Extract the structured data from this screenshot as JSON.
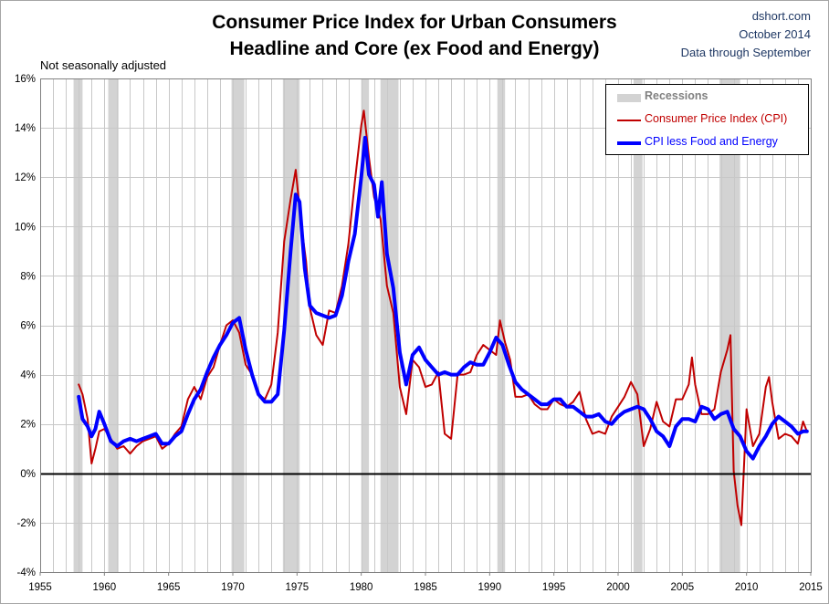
{
  "chart": {
    "title_line1": "Consumer Price Index for Urban Consumers",
    "title_line2": "Headline and Core (ex Food and Energy)",
    "credit_line1": "dshort.com",
    "credit_line2": "October 2014",
    "credit_line3": "Data through September",
    "note": "Not seasonally adjusted"
  },
  "legend": {
    "recessions": "Recessions",
    "cpi": "Consumer Price Index (CPI)",
    "core": "CPI less Food and Energy"
  },
  "colors": {
    "cpi": "#c00000",
    "core": "#0000ff",
    "recession": "#d3d3d3",
    "grid": "#c8c8c8",
    "credit": "#1f3864"
  },
  "chart_data": {
    "type": "line",
    "title": "Consumer Price Index for Urban Consumers Headline and Core (ex Food and Energy)",
    "xlim": [
      1955,
      2015
    ],
    "ylim": [
      -4,
      16
    ],
    "x_ticks": [
      "1955",
      "1960",
      "1965",
      "1970",
      "1975",
      "1980",
      "1985",
      "1990",
      "1995",
      "2000",
      "2005",
      "2010",
      "2015"
    ],
    "y_ticks": [
      "-4%",
      "-2%",
      "0%",
      "2%",
      "4%",
      "6%",
      "8%",
      "10%",
      "12%",
      "14%",
      "16%"
    ],
    "grid": true,
    "legend_position": "top-right",
    "recessions": [
      [
        1957.6,
        1958.3
      ],
      [
        1960.3,
        1961.1
      ],
      [
        1969.9,
        1970.9
      ],
      [
        1973.9,
        1975.2
      ],
      [
        1980.0,
        1980.6
      ],
      [
        1981.5,
        1982.9
      ],
      [
        1990.6,
        1991.2
      ],
      [
        2001.2,
        2001.9
      ],
      [
        2007.9,
        2009.5
      ]
    ],
    "series": [
      {
        "name": "Consumer Price Index (CPI)",
        "x": [
          1958.0,
          1958.3,
          1958.7,
          1959.0,
          1959.3,
          1959.6,
          1960.0,
          1960.5,
          1961.0,
          1961.5,
          1962.0,
          1962.5,
          1963.0,
          1963.5,
          1964.0,
          1964.5,
          1965.0,
          1965.5,
          1966.0,
          1966.5,
          1967.0,
          1967.5,
          1968.0,
          1968.5,
          1969.0,
          1969.5,
          1970.0,
          1970.5,
          1971.0,
          1971.5,
          1972.0,
          1972.5,
          1973.0,
          1973.5,
          1974.0,
          1974.5,
          1974.9,
          1975.3,
          1975.7,
          1976.0,
          1976.5,
          1977.0,
          1977.5,
          1978.0,
          1978.5,
          1979.0,
          1979.5,
          1980.0,
          1980.2,
          1980.6,
          1981.0,
          1981.5,
          1982.0,
          1982.5,
          1983.0,
          1983.5,
          1984.0,
          1984.5,
          1985.0,
          1985.5,
          1986.0,
          1986.5,
          1987.0,
          1987.5,
          1988.0,
          1988.5,
          1989.0,
          1989.5,
          1990.0,
          1990.5,
          1990.8,
          1991.2,
          1991.6,
          1992.0,
          1992.5,
          1993.0,
          1993.5,
          1994.0,
          1994.5,
          1995.0,
          1995.5,
          1996.0,
          1996.5,
          1997.0,
          1997.5,
          1998.0,
          1998.5,
          1999.0,
          1999.5,
          2000.0,
          2000.5,
          2001.0,
          2001.5,
          2002.0,
          2002.5,
          2003.0,
          2003.5,
          2004.0,
          2004.5,
          2005.0,
          2005.5,
          2005.75,
          2006.0,
          2006.5,
          2007.0,
          2007.5,
          2008.0,
          2008.5,
          2008.75,
          2009.0,
          2009.3,
          2009.6,
          2010.0,
          2010.5,
          2011.0,
          2011.5,
          2011.75,
          2012.0,
          2012.5,
          2013.0,
          2013.5,
          2014.0,
          2014.4,
          2014.7
        ],
        "values": [
          3.6,
          3.2,
          2.2,
          0.4,
          1.0,
          1.7,
          1.8,
          1.4,
          1.0,
          1.1,
          0.8,
          1.1,
          1.3,
          1.4,
          1.5,
          1.0,
          1.2,
          1.6,
          1.9,
          3.0,
          3.5,
          3.0,
          3.9,
          4.3,
          5.2,
          6.0,
          6.2,
          5.7,
          4.4,
          4.0,
          3.2,
          3.0,
          3.6,
          5.7,
          9.4,
          11.1,
          12.3,
          10.2,
          8.6,
          6.7,
          5.6,
          5.2,
          6.6,
          6.5,
          7.6,
          9.3,
          11.8,
          14.1,
          14.7,
          12.8,
          11.2,
          10.3,
          7.6,
          6.5,
          3.5,
          2.4,
          4.6,
          4.3,
          3.5,
          3.6,
          4.1,
          1.6,
          1.4,
          4.0,
          4.0,
          4.1,
          4.8,
          5.2,
          5.0,
          4.8,
          6.2,
          5.3,
          4.6,
          3.1,
          3.1,
          3.2,
          2.8,
          2.6,
          2.6,
          3.0,
          2.8,
          2.7,
          2.9,
          3.3,
          2.2,
          1.6,
          1.7,
          1.6,
          2.3,
          2.7,
          3.1,
          3.7,
          3.2,
          1.1,
          1.8,
          2.9,
          2.1,
          1.9,
          3.0,
          3.0,
          3.6,
          4.7,
          3.6,
          2.4,
          2.4,
          2.6,
          4.1,
          5.0,
          5.6,
          0.1,
          -1.3,
          -2.1,
          2.6,
          1.1,
          1.6,
          3.5,
          3.9,
          2.9,
          1.4,
          1.6,
          1.5,
          1.2,
          2.1,
          1.7
        ]
      },
      {
        "name": "CPI less Food and Energy",
        "x": [
          1958.0,
          1958.3,
          1958.7,
          1959.0,
          1959.3,
          1959.6,
          1960.0,
          1960.5,
          1961.0,
          1961.5,
          1962.0,
          1962.5,
          1963.0,
          1963.5,
          1964.0,
          1964.5,
          1965.0,
          1965.5,
          1966.0,
          1966.5,
          1967.0,
          1967.5,
          1968.0,
          1968.5,
          1969.0,
          1969.5,
          1970.0,
          1970.5,
          1971.0,
          1971.5,
          1972.0,
          1972.5,
          1973.0,
          1973.5,
          1974.0,
          1974.5,
          1974.9,
          1975.2,
          1975.6,
          1976.0,
          1976.5,
          1977.0,
          1977.5,
          1978.0,
          1978.5,
          1979.0,
          1979.5,
          1980.0,
          1980.3,
          1980.6,
          1981.0,
          1981.3,
          1981.6,
          1982.0,
          1982.5,
          1983.0,
          1983.5,
          1984.0,
          1984.5,
          1985.0,
          1985.5,
          1986.0,
          1986.5,
          1987.0,
          1987.5,
          1988.0,
          1988.5,
          1989.0,
          1989.5,
          1990.0,
          1990.5,
          1991.0,
          1991.5,
          1992.0,
          1992.5,
          1993.0,
          1993.5,
          1994.0,
          1994.5,
          1995.0,
          1995.5,
          1996.0,
          1996.5,
          1997.0,
          1997.5,
          1998.0,
          1998.5,
          1999.0,
          1999.5,
          2000.0,
          2000.5,
          2001.0,
          2001.5,
          2002.0,
          2002.5,
          2003.0,
          2003.5,
          2004.0,
          2004.5,
          2005.0,
          2005.5,
          2006.0,
          2006.5,
          2007.0,
          2007.5,
          2008.0,
          2008.5,
          2009.0,
          2009.5,
          2010.0,
          2010.5,
          2011.0,
          2011.5,
          2012.0,
          2012.5,
          2013.0,
          2013.5,
          2014.0,
          2014.4,
          2014.7
        ],
        "values": [
          3.1,
          2.2,
          1.9,
          1.5,
          1.8,
          2.5,
          2.0,
          1.3,
          1.1,
          1.3,
          1.4,
          1.3,
          1.4,
          1.5,
          1.6,
          1.2,
          1.2,
          1.5,
          1.7,
          2.4,
          3.0,
          3.4,
          4.1,
          4.7,
          5.2,
          5.6,
          6.1,
          6.3,
          5.0,
          4.0,
          3.2,
          2.9,
          2.9,
          3.2,
          5.8,
          9.0,
          11.3,
          11.0,
          8.3,
          6.8,
          6.5,
          6.4,
          6.3,
          6.4,
          7.2,
          8.6,
          9.7,
          12.0,
          13.6,
          12.1,
          11.7,
          10.4,
          11.8,
          8.9,
          7.5,
          4.9,
          3.6,
          4.8,
          5.1,
          4.6,
          4.3,
          4.0,
          4.1,
          4.0,
          4.0,
          4.3,
          4.5,
          4.4,
          4.4,
          4.9,
          5.5,
          5.2,
          4.4,
          3.7,
          3.4,
          3.2,
          3.0,
          2.8,
          2.8,
          3.0,
          3.0,
          2.7,
          2.7,
          2.5,
          2.3,
          2.3,
          2.4,
          2.1,
          2.0,
          2.3,
          2.5,
          2.6,
          2.7,
          2.6,
          2.2,
          1.7,
          1.5,
          1.1,
          1.9,
          2.2,
          2.2,
          2.1,
          2.7,
          2.6,
          2.2,
          2.4,
          2.5,
          1.8,
          1.5,
          0.9,
          0.6,
          1.1,
          1.5,
          2.0,
          2.3,
          2.1,
          1.9,
          1.6,
          1.7,
          1.7
        ]
      }
    ]
  }
}
